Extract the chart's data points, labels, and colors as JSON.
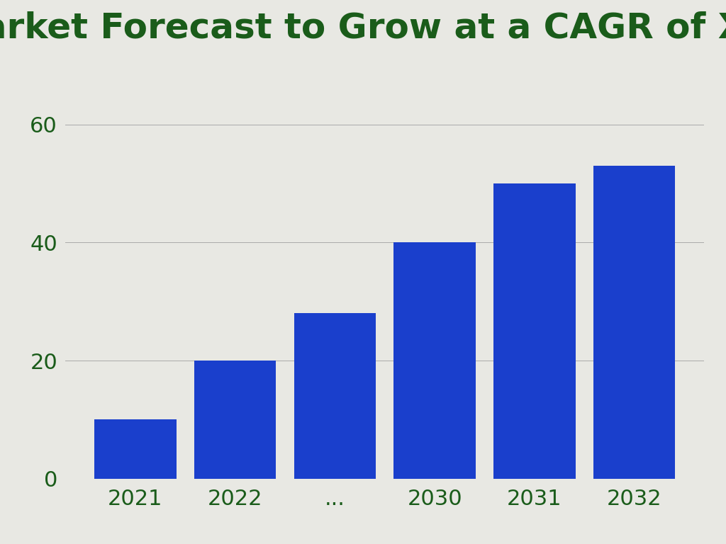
{
  "title": "Market Forecast to Grow at a CAGR of X.X%",
  "title_color": "#1a5c1a",
  "title_fontsize": 36,
  "title_fontweight": "bold",
  "categories": [
    "2021",
    "2022",
    "...",
    "2030",
    "2031",
    "2032"
  ],
  "values": [
    10,
    20,
    28,
    40,
    50,
    53
  ],
  "bar_color": "#1a3fcc",
  "background_color": "#e8e8e3",
  "ylim": [
    0,
    70
  ],
  "yticks": [
    0,
    20,
    40,
    60
  ],
  "tick_color": "#1a5c1a",
  "tick_fontsize": 22,
  "bar_width": 0.82,
  "grid_color": "#aaaaaa",
  "grid_linewidth": 0.7
}
